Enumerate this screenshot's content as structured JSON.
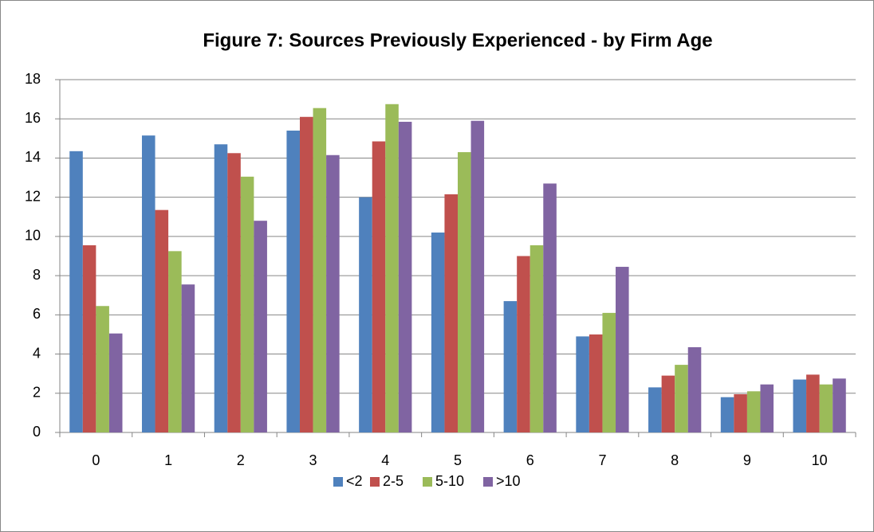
{
  "chart_data": {
    "type": "bar",
    "title": "Figure 7: Sources Previously Experienced - by Firm Age",
    "categories": [
      "0",
      "1",
      "2",
      "3",
      "4",
      "5",
      "6",
      "7",
      "8",
      "9",
      "10"
    ],
    "series": [
      {
        "name": "<2",
        "color": "#4f81bd",
        "values": [
          14.35,
          15.15,
          14.7,
          15.4,
          12.0,
          10.2,
          6.7,
          4.9,
          2.3,
          1.8,
          2.7
        ]
      },
      {
        "name": "2-5",
        "color": "#c0504d",
        "values": [
          9.55,
          11.35,
          14.25,
          16.1,
          14.85,
          12.15,
          9.0,
          5.0,
          2.9,
          1.95,
          2.95
        ]
      },
      {
        "name": "5-10",
        "color": "#9bbb59",
        "values": [
          6.45,
          9.25,
          13.05,
          16.55,
          16.75,
          14.3,
          9.55,
          6.1,
          3.45,
          2.1,
          2.45
        ]
      },
      {
        "name": ">10",
        "color": "#8064a2",
        "values": [
          5.05,
          7.55,
          10.8,
          14.15,
          15.85,
          15.9,
          12.7,
          8.45,
          4.35,
          2.45,
          2.75
        ]
      }
    ],
    "ylim": [
      0,
      18
    ],
    "yticks": [
      0,
      2,
      4,
      6,
      8,
      10,
      12,
      14,
      16,
      18
    ],
    "grid": true,
    "legend": "bottom"
  }
}
